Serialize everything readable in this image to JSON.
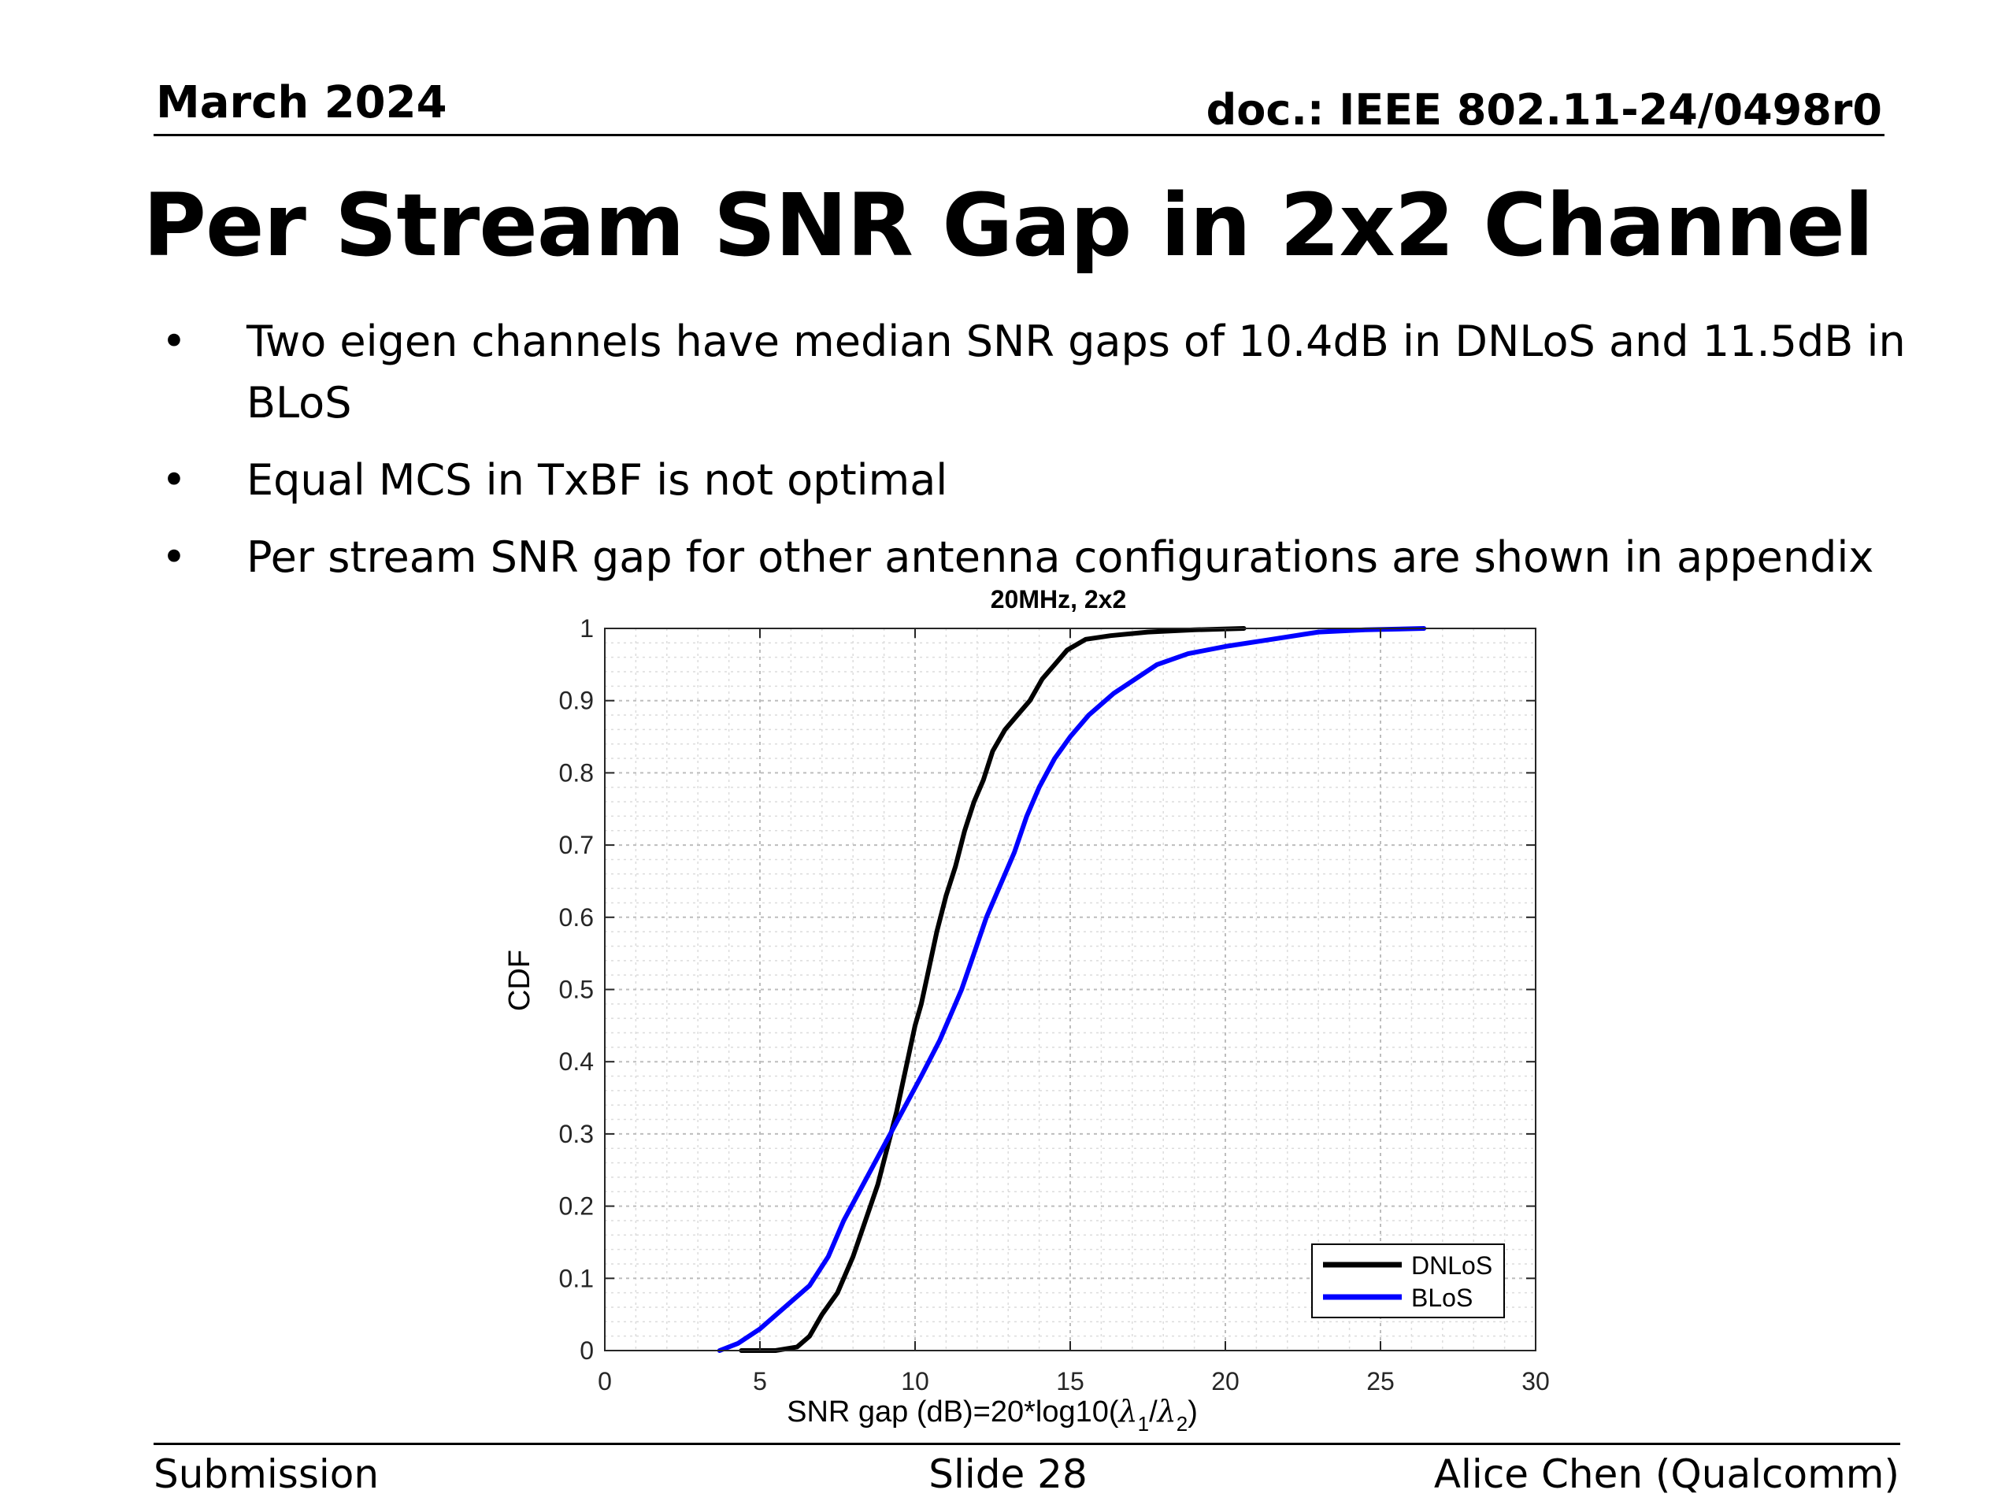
{
  "header": {
    "date": "March 2024",
    "doc": "doc.: IEEE 802.11-24/0498r0"
  },
  "slide": {
    "title": "Per Stream SNR Gap in 2x2 Channel",
    "bullet_symbol": "•",
    "bullets": [
      {
        "lines": [
          "Two eigen channels have median SNR gaps of 10.4dB in DNLoS and 11.5dB in",
          "BLoS"
        ]
      },
      {
        "lines": [
          "Equal MCS in TxBF is not optimal"
        ]
      },
      {
        "lines": [
          "Per stream SNR gap for other antenna configurations are shown in appendix"
        ]
      }
    ]
  },
  "footer": {
    "left": "Submission",
    "center": "Slide 28",
    "right": "Alice Chen (Qualcomm)"
  },
  "chart_data": {
    "type": "line",
    "title": "20MHz, 2x2",
    "xlabel": "SNR gap (dB)=20*log10(λ1/λ2)",
    "xlabel_parts": {
      "prefix": "SNR gap (dB)=20*log10(",
      "sym1": "λ",
      "sub1": "1",
      "slash": "/",
      "sym2": "λ",
      "sub2": "2",
      "suffix": ")"
    },
    "ylabel": "CDF",
    "xlim": [
      0,
      30
    ],
    "ylim": [
      0,
      1
    ],
    "xticks": [
      0,
      5,
      10,
      15,
      20,
      25,
      30
    ],
    "xtick_labels": [
      "0",
      "5",
      "10",
      "15",
      "20",
      "25",
      "30"
    ],
    "yticks": [
      0,
      0.1,
      0.2,
      0.3,
      0.4,
      0.5,
      0.6,
      0.7,
      0.8,
      0.9,
      1
    ],
    "ytick_labels": [
      "0",
      "0.1",
      "0.2",
      "0.3",
      "0.4",
      "0.5",
      "0.6",
      "0.7",
      "0.8",
      "0.9",
      "1"
    ],
    "grid": true,
    "minor_grid": true,
    "legend_position": "bottom-right",
    "series": [
      {
        "name": "DNLoS",
        "color": "#000000",
        "x": [
          4.4,
          5.5,
          6.2,
          6.6,
          7.0,
          7.5,
          8.0,
          8.4,
          8.8,
          9.1,
          9.4,
          9.6,
          9.8,
          10.0,
          10.2,
          10.4,
          10.7,
          11.0,
          11.3,
          11.6,
          11.9,
          12.2,
          12.5,
          12.9,
          13.3,
          13.7,
          14.1,
          14.5,
          14.9,
          15.5,
          16.3,
          17.5,
          19.0,
          20.6
        ],
        "y": [
          0.0,
          0.0,
          0.005,
          0.02,
          0.05,
          0.08,
          0.13,
          0.18,
          0.23,
          0.28,
          0.33,
          0.37,
          0.41,
          0.45,
          0.48,
          0.52,
          0.58,
          0.63,
          0.67,
          0.72,
          0.76,
          0.79,
          0.83,
          0.86,
          0.88,
          0.9,
          0.93,
          0.95,
          0.97,
          0.985,
          0.99,
          0.995,
          0.998,
          1.0
        ]
      },
      {
        "name": "BLoS",
        "color": "#0000ff",
        "x": [
          3.7,
          4.3,
          5.0,
          5.8,
          6.6,
          7.2,
          7.7,
          8.2,
          8.7,
          9.2,
          9.7,
          10.2,
          10.8,
          11.2,
          11.5,
          11.9,
          12.3,
          12.7,
          13.2,
          13.6,
          14.0,
          14.5,
          15.0,
          15.6,
          16.4,
          17.1,
          17.8,
          18.8,
          20.0,
          21.5,
          23.0,
          24.5,
          26.4
        ],
        "y": [
          0.0,
          0.01,
          0.03,
          0.06,
          0.09,
          0.13,
          0.18,
          0.22,
          0.26,
          0.3,
          0.34,
          0.38,
          0.43,
          0.47,
          0.5,
          0.55,
          0.6,
          0.64,
          0.69,
          0.74,
          0.78,
          0.82,
          0.85,
          0.88,
          0.91,
          0.93,
          0.95,
          0.965,
          0.975,
          0.985,
          0.995,
          0.998,
          1.0
        ]
      }
    ]
  }
}
